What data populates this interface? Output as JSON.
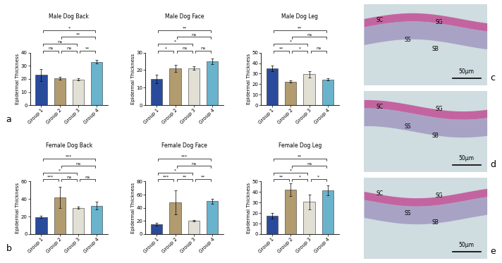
{
  "chart_data": [
    {
      "type": "bar",
      "title": "Male Dog Back",
      "y_label": "Epidermal Thickness",
      "categories": [
        "Group 1",
        "Group 2",
        "Group 3",
        "Group 4"
      ],
      "values": [
        23,
        20.5,
        19.5,
        33
      ],
      "errors": [
        4.5,
        1,
        0.8,
        1.5
      ],
      "colors": [
        "#2a4b9b",
        "#b19b6f",
        "#e2e0d5",
        "#69b3cc"
      ],
      "ylim": [
        0,
        40
      ],
      "yticks": [
        0,
        10,
        20,
        30,
        40
      ],
      "comparisons": [
        {
          "groups": [
            "Group 1",
            "Group 2"
          ],
          "label": "ns"
        },
        {
          "groups": [
            "Group 2",
            "Group 3"
          ],
          "label": "ns"
        },
        {
          "groups": [
            "Group 3",
            "Group 4"
          ],
          "label": "**"
        },
        {
          "groups": [
            "Group 1",
            "Group 3"
          ],
          "label": "ns"
        },
        {
          "groups": [
            "Group 2",
            "Group 4"
          ],
          "label": "**"
        },
        {
          "groups": [
            "Group 1",
            "Group 4"
          ],
          "label": "*"
        }
      ]
    },
    {
      "type": "bar",
      "title": "Male Dog Face",
      "y_label": "Epidermal Thickness",
      "categories": [
        "Group 1",
        "Group 2",
        "Group 3",
        "Group 4"
      ],
      "values": [
        15,
        21,
        21,
        25
      ],
      "errors": [
        2.5,
        2,
        1,
        1.5
      ],
      "colors": [
        "#2a4b9b",
        "#b19b6f",
        "#e2e0d5",
        "#69b3cc"
      ],
      "ylim": [
        0,
        30
      ],
      "yticks": [
        0,
        10,
        20,
        30
      ],
      "comparisons": [
        {
          "groups": [
            "Group 1",
            "Group 2"
          ],
          "label": "*"
        },
        {
          "groups": [
            "Group 2",
            "Group 3"
          ],
          "label": "ns"
        },
        {
          "groups": [
            "Group 3",
            "Group 4"
          ],
          "label": "ns"
        },
        {
          "groups": [
            "Group 1",
            "Group 3"
          ],
          "label": "*"
        },
        {
          "groups": [
            "Group 2",
            "Group 4"
          ],
          "label": "ns"
        },
        {
          "groups": [
            "Group 1",
            "Group 4"
          ],
          "label": "**"
        }
      ]
    },
    {
      "type": "bar",
      "title": "Male Dog Leg",
      "y_label": "Epidermal Thickness",
      "categories": [
        "Group 1",
        "Group 2",
        "Group 3",
        "Group 4"
      ],
      "values": [
        35,
        22.5,
        29.5,
        24.5
      ],
      "errors": [
        2.5,
        1,
        3,
        1
      ],
      "colors": [
        "#2a4b9b",
        "#b19b6f",
        "#e2e0d5",
        "#69b3cc"
      ],
      "ylim": [
        0,
        50
      ],
      "yticks": [
        0,
        10,
        20,
        30,
        40,
        50
      ],
      "comparisons": [
        {
          "groups": [
            "Group 1",
            "Group 2"
          ],
          "label": "**"
        },
        {
          "groups": [
            "Group 2",
            "Group 3"
          ],
          "label": "*"
        },
        {
          "groups": [
            "Group 3",
            "Group 4"
          ],
          "label": "ns"
        },
        {
          "groups": [
            "Group 1",
            "Group 3"
          ],
          "label": "*"
        },
        {
          "groups": [
            "Group 2",
            "Group 4"
          ],
          "label": "ns"
        },
        {
          "groups": [
            "Group 1",
            "Group 4"
          ],
          "label": "**"
        }
      ]
    },
    {
      "type": "bar",
      "title": "Female Dog Back",
      "y_label": "Epidermal Thickness",
      "categories": [
        "Group 1",
        "Group 2",
        "Group 3",
        "Group 4"
      ],
      "values": [
        19.5,
        41.5,
        30,
        32.5
      ],
      "errors": [
        1,
        12,
        1,
        4.5
      ],
      "colors": [
        "#2a4b9b",
        "#b19b6f",
        "#e2e0d5",
        "#69b3cc"
      ],
      "ylim": [
        0,
        60
      ],
      "yticks": [
        0,
        20,
        40,
        60
      ],
      "comparisons": [
        {
          "groups": [
            "Group 1",
            "Group 2"
          ],
          "label": "***"
        },
        {
          "groups": [
            "Group 2",
            "Group 3"
          ],
          "label": "ns"
        },
        {
          "groups": [
            "Group 3",
            "Group 4"
          ],
          "label": "ns"
        },
        {
          "groups": [
            "Group 1",
            "Group 3"
          ],
          "label": "*"
        },
        {
          "groups": [
            "Group 2",
            "Group 4"
          ],
          "label": "ns"
        },
        {
          "groups": [
            "Group 1",
            "Group 4"
          ],
          "label": "***"
        }
      ]
    },
    {
      "type": "bar",
      "title": "Female Dog Face",
      "y_label": "Epidermal Thickness",
      "categories": [
        "Group 1",
        "Group 2",
        "Group 3",
        "Group 4"
      ],
      "values": [
        15,
        48.5,
        20.5,
        50
      ],
      "errors": [
        2,
        18,
        1,
        4
      ],
      "colors": [
        "#2a4b9b",
        "#b19b6f",
        "#e2e0d5",
        "#69b3cc"
      ],
      "ylim": [
        0,
        80
      ],
      "yticks": [
        0,
        20,
        40,
        60,
        80
      ],
      "comparisons": [
        {
          "groups": [
            "Group 1",
            "Group 2"
          ],
          "label": "***"
        },
        {
          "groups": [
            "Group 2",
            "Group 3"
          ],
          "label": "**"
        },
        {
          "groups": [
            "Group 3",
            "Group 4"
          ],
          "label": "**"
        },
        {
          "groups": [
            "Group 1",
            "Group 3"
          ],
          "label": "*"
        },
        {
          "groups": [
            "Group 2",
            "Group 4"
          ],
          "label": "ns"
        },
        {
          "groups": [
            "Group 1",
            "Group 4"
          ],
          "label": "***"
        }
      ]
    },
    {
      "type": "bar",
      "title": "Female Dog Leg",
      "y_label": "Epidermal Thickness",
      "categories": [
        "Group 1",
        "Group 2",
        "Group 3",
        "Group 4"
      ],
      "values": [
        17.5,
        42,
        30.5,
        41.5
      ],
      "errors": [
        2.5,
        6,
        7,
        4.5
      ],
      "colors": [
        "#2a4b9b",
        "#b19b6f",
        "#e2e0d5",
        "#69b3cc"
      ],
      "ylim": [
        0,
        50
      ],
      "yticks": [
        0,
        10,
        20,
        30,
        40,
        50
      ],
      "comparisons": [
        {
          "groups": [
            "Group 1",
            "Group 2"
          ],
          "label": "**"
        },
        {
          "groups": [
            "Group 2",
            "Group 3"
          ],
          "label": "*"
        },
        {
          "groups": [
            "Group 3",
            "Group 4"
          ],
          "label": "*"
        },
        {
          "groups": [
            "Group 1",
            "Group 3"
          ],
          "label": "*"
        },
        {
          "groups": [
            "Group 2",
            "Group 4"
          ],
          "label": "ns"
        },
        {
          "groups": [
            "Group 1",
            "Group 4"
          ],
          "label": "**"
        }
      ]
    }
  ],
  "panel_labels": [
    "a",
    "b",
    "c",
    "d",
    "e"
  ],
  "images": [
    {
      "labels": [
        "SC",
        "SG",
        "SS",
        "SB"
      ],
      "scale_bar": "50µm"
    },
    {
      "labels": [
        "SC",
        "SG",
        "SS",
        "SB"
      ],
      "scale_bar": "50µm"
    },
    {
      "labels": [
        "SC",
        "SG",
        "SS",
        "SB"
      ],
      "scale_bar": "50µm"
    }
  ]
}
